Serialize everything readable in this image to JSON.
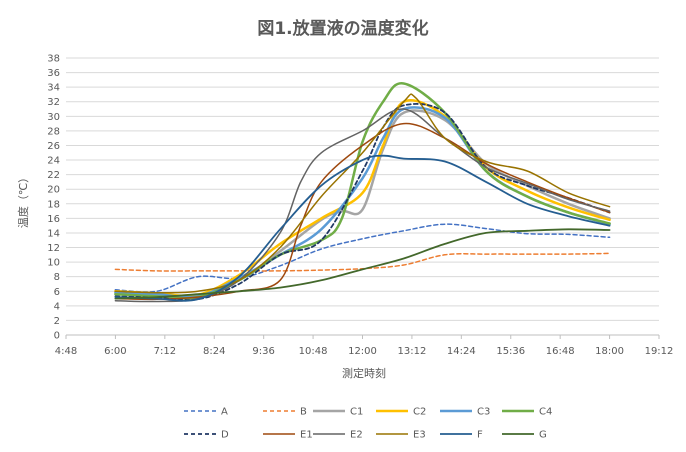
{
  "chart_data": {
    "type": "line",
    "title": "図1.放置液の温度変化",
    "xlabel": "測定時刻",
    "ylabel": "温度（℃）",
    "x_ticks": [
      "4:48",
      "6:00",
      "7:12",
      "8:24",
      "9:36",
      "10:48",
      "12:00",
      "13:12",
      "14:24",
      "15:36",
      "16:48",
      "18:00",
      "19:12"
    ],
    "xlim_hours": [
      4.8,
      19.2
    ],
    "ylim": [
      0,
      38
    ],
    "y_ticks": [
      0,
      2,
      4,
      6,
      8,
      10,
      12,
      14,
      16,
      18,
      20,
      22,
      24,
      26,
      28,
      30,
      32,
      34,
      36,
      38
    ],
    "grid": true,
    "legend_position": "bottom",
    "series": [
      {
        "name": "A",
        "color": "#4472C4",
        "dash": true,
        "width": 1.5,
        "x": [
          6.0,
          7.0,
          8.0,
          9.0,
          10.0,
          11.0,
          12.0,
          13.0,
          14.0,
          15.0,
          16.0,
          17.0,
          18.0
        ],
        "y": [
          6.2,
          6.0,
          8.0,
          7.8,
          9.5,
          11.8,
          13.2,
          14.3,
          15.2,
          14.6,
          13.9,
          13.8,
          13.4
        ]
      },
      {
        "name": "B",
        "color": "#ED7D31",
        "dash": true,
        "width": 1.5,
        "x": [
          6.0,
          7.0,
          8.0,
          9.0,
          10.0,
          11.0,
          12.0,
          13.0,
          14.0,
          15.0,
          16.0,
          17.0,
          18.0
        ],
        "y": [
          9.0,
          8.8,
          8.8,
          8.8,
          8.8,
          8.9,
          9.1,
          9.6,
          11.0,
          11.1,
          11.1,
          11.1,
          11.2
        ]
      },
      {
        "name": "C1",
        "color": "#A5A5A5",
        "dash": false,
        "width": 2.5,
        "x": [
          6.0,
          7.0,
          8.0,
          9.0,
          10.0,
          11.0,
          11.5,
          12.0,
          12.5,
          13.0,
          14.0,
          15.0,
          16.0,
          17.0,
          18.0
        ],
        "y": [
          6.0,
          5.6,
          5.4,
          7.5,
          11.5,
          15.8,
          17.0,
          17.2,
          25.5,
          30.5,
          29.5,
          23.5,
          20.5,
          18.0,
          16.0
        ]
      },
      {
        "name": "C2",
        "color": "#FFC000",
        "dash": false,
        "width": 2.5,
        "x": [
          6.0,
          7.0,
          8.0,
          9.0,
          10.0,
          11.0,
          12.0,
          12.5,
          13.0,
          14.0,
          15.0,
          16.0,
          17.0,
          18.0
        ],
        "y": [
          6.0,
          5.7,
          5.5,
          8.2,
          12.5,
          16.0,
          19.5,
          26.0,
          32.0,
          30.0,
          23.0,
          19.8,
          17.5,
          15.8
        ]
      },
      {
        "name": "C3",
        "color": "#5B9BD5",
        "dash": false,
        "width": 2.5,
        "x": [
          6.0,
          7.0,
          8.0,
          9.0,
          10.0,
          11.0,
          12.0,
          12.5,
          13.0,
          14.0,
          15.0,
          16.0,
          17.0,
          18.0
        ],
        "y": [
          5.8,
          5.6,
          5.3,
          7.8,
          11.0,
          14.5,
          21.5,
          27.0,
          31.0,
          29.8,
          22.5,
          19.0,
          16.8,
          15.2
        ]
      },
      {
        "name": "C4",
        "color": "#70AD47",
        "dash": false,
        "width": 2.5,
        "x": [
          6.0,
          7.0,
          8.0,
          9.0,
          10.0,
          11.0,
          11.5,
          12.0,
          12.5,
          13.0,
          14.0,
          15.0,
          16.0,
          17.0,
          18.0
        ],
        "y": [
          5.6,
          5.3,
          5.2,
          7.5,
          11.0,
          13.0,
          16.0,
          26.5,
          32.0,
          34.5,
          30.5,
          22.5,
          19.0,
          16.8,
          15.3
        ]
      },
      {
        "name": "D",
        "color": "#203864",
        "dash": true,
        "width": 1.8,
        "x": [
          6.0,
          7.0,
          8.0,
          9.0,
          10.0,
          11.0,
          12.0,
          12.5,
          13.0,
          14.0,
          15.0,
          16.0,
          17.0,
          18.0
        ],
        "y": [
          5.3,
          5.1,
          4.9,
          7.0,
          11.0,
          13.0,
          22.5,
          28.5,
          31.5,
          30.5,
          23.0,
          20.5,
          18.8,
          16.8
        ]
      },
      {
        "name": "E1",
        "color": "#9E480E",
        "dash": false,
        "width": 1.5,
        "x": [
          6.0,
          7.0,
          8.0,
          9.0,
          10.0,
          10.5,
          11.0,
          12.0,
          13.0,
          14.0,
          15.0,
          16.0,
          17.0,
          18.0
        ],
        "y": [
          5.0,
          4.9,
          5.2,
          6.0,
          7.5,
          15.0,
          21.0,
          26.0,
          29.0,
          27.0,
          23.5,
          21.0,
          18.8,
          16.8
        ]
      },
      {
        "name": "E2",
        "color": "#636363",
        "dash": false,
        "width": 1.5,
        "x": [
          6.0,
          7.0,
          8.0,
          9.0,
          10.0,
          10.5,
          11.0,
          12.0,
          13.0,
          14.0,
          15.0,
          16.0,
          17.0,
          18.0
        ],
        "y": [
          4.7,
          4.6,
          5.0,
          7.5,
          14.0,
          21.0,
          25.0,
          28.0,
          31.0,
          27.0,
          23.0,
          20.8,
          18.6,
          17.0
        ]
      },
      {
        "name": "E3",
        "color": "#997300",
        "dash": false,
        "width": 1.5,
        "x": [
          6.0,
          7.0,
          8.0,
          9.0,
          10.0,
          11.0,
          12.0,
          13.0,
          13.3,
          14.0,
          15.0,
          16.0,
          17.0,
          18.0
        ],
        "y": [
          6.0,
          5.8,
          6.0,
          7.5,
          12.0,
          19.0,
          25.0,
          32.0,
          32.5,
          27.0,
          23.8,
          22.5,
          19.5,
          17.6
        ]
      },
      {
        "name": "F",
        "color": "#255E91",
        "dash": false,
        "width": 1.8,
        "x": [
          6.0,
          7.0,
          8.0,
          9.0,
          10.0,
          11.0,
          12.0,
          12.5,
          13.0,
          14.0,
          15.0,
          16.0,
          17.0,
          18.0
        ],
        "y": [
          5.2,
          5.0,
          4.9,
          8.0,
          14.5,
          20.5,
          24.0,
          24.6,
          24.2,
          23.8,
          21.0,
          18.0,
          16.3,
          15.0
        ]
      },
      {
        "name": "G",
        "color": "#43682B",
        "dash": false,
        "width": 1.8,
        "x": [
          6.0,
          7.0,
          8.0,
          9.0,
          10.0,
          11.0,
          12.0,
          13.0,
          14.0,
          15.0,
          16.0,
          17.0,
          18.0
        ],
        "y": [
          5.0,
          5.2,
          5.6,
          6.0,
          6.5,
          7.5,
          9.0,
          10.5,
          12.5,
          14.0,
          14.3,
          14.5,
          14.4
        ]
      }
    ]
  }
}
